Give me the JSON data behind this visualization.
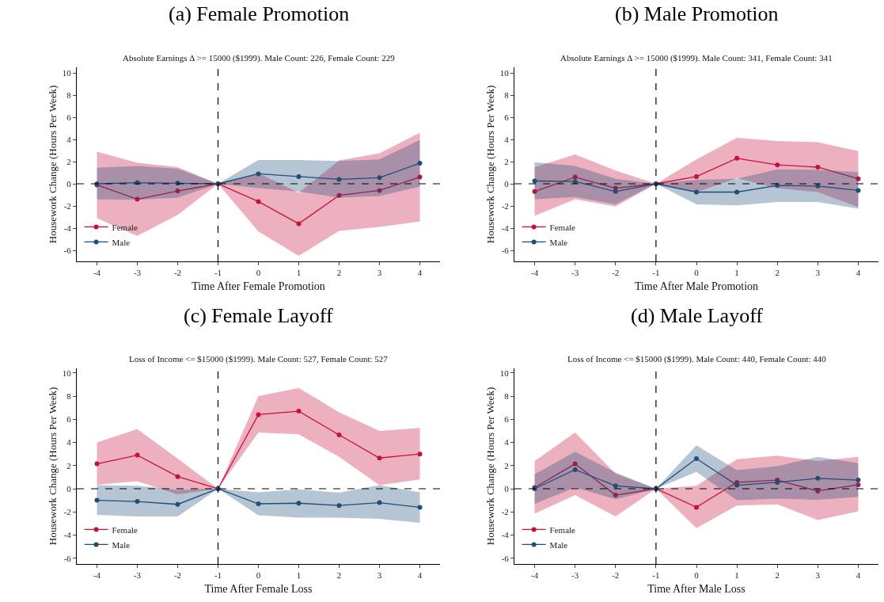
{
  "chart_data": [
    {
      "type": "line",
      "title": "(a) Female Promotion",
      "subtitle": "Absolute Earnings Δ >= 15000 ($1999). Male Count: 226, Female Count: 229",
      "xlabel": "Time After Female Promotion",
      "ylabel": "Housework Change (Hours Per Week)",
      "x": [
        -4,
        -3,
        -2,
        -1,
        0,
        1,
        2,
        3,
        4
      ],
      "xlim": [
        -4.5,
        4.5
      ],
      "xticks": [
        -4,
        -3,
        -2,
        -1,
        0,
        1,
        2,
        3,
        4
      ],
      "ylim": [
        -7,
        10.5
      ],
      "yticks": [
        -6,
        -4,
        -2,
        0,
        2,
        4,
        6,
        8,
        10
      ],
      "legend": "bottom left",
      "marker": "circle",
      "line_style": "solid",
      "ref_lines": [
        {
          "axis": "x",
          "value": -1,
          "color": "#000000",
          "line_style": "dashed"
        },
        {
          "axis": "y",
          "value": 0,
          "color": "#000000",
          "line_style": "dashed"
        }
      ],
      "series": [
        {
          "name": "Female",
          "color": "#c8103c",
          "values": [
            -0.1,
            -1.4,
            -0.65,
            0,
            -1.6,
            -3.6,
            -1.05,
            -0.6,
            0.6
          ],
          "lower": [
            -3.1,
            -4.7,
            -2.8,
            0,
            -4.3,
            -6.5,
            -4.25,
            -3.9,
            -3.4
          ],
          "upper": [
            2.9,
            1.9,
            1.5,
            0,
            0.95,
            -0.8,
            2.1,
            2.75,
            4.6
          ]
        },
        {
          "name": "Male",
          "color": "#1f4e79",
          "values": [
            0,
            0.1,
            0.05,
            0,
            0.9,
            0.65,
            0.4,
            0.55,
            1.85
          ],
          "lower": [
            -1.4,
            -1.45,
            -1.25,
            0,
            -0.4,
            -0.7,
            -1.25,
            -1.1,
            -0.25
          ],
          "upper": [
            1.45,
            1.6,
            1.35,
            0,
            2.15,
            2.15,
            2.05,
            2.2,
            3.95
          ]
        }
      ]
    },
    {
      "type": "line",
      "title": "(b) Male Promotion",
      "subtitle": "Absolute Earnings Δ >= 15000 ($1999). Male Count: 341, Female Count: 341",
      "xlabel": "Time After Male Promotion",
      "ylabel": "Housework Change (Hours Per Week)",
      "x": [
        -4,
        -3,
        -2,
        -1,
        0,
        1,
        2,
        3,
        4
      ],
      "xlim": [
        -4.5,
        4.5
      ],
      "xticks": [
        -4,
        -3,
        -2,
        -1,
        0,
        1,
        2,
        3,
        4
      ],
      "ylim": [
        -7,
        10.5
      ],
      "yticks": [
        -6,
        -4,
        -2,
        0,
        2,
        4,
        6,
        8,
        10
      ],
      "legend": "bottom left",
      "marker": "circle",
      "line_style": "solid",
      "ref_lines": [
        {
          "axis": "x",
          "value": -1,
          "color": "#000000",
          "line_style": "dashed"
        },
        {
          "axis": "y",
          "value": 0,
          "color": "#000000",
          "line_style": "dashed"
        }
      ],
      "series": [
        {
          "name": "Female",
          "color": "#c8103c",
          "values": [
            -0.7,
            0.6,
            -0.4,
            0,
            0.65,
            2.3,
            1.7,
            1.5,
            0.45
          ],
          "lower": [
            -2.9,
            -1.4,
            -2.05,
            0,
            -0.75,
            0.5,
            -0.4,
            -0.75,
            -2.1
          ],
          "upper": [
            1.5,
            2.65,
            1.2,
            0,
            2.2,
            4.15,
            3.85,
            3.75,
            2.95
          ]
        },
        {
          "name": "Male",
          "color": "#1f4e79",
          "values": [
            0.25,
            0.2,
            -0.7,
            0,
            -0.75,
            -0.75,
            -0.15,
            -0.2,
            -0.6
          ],
          "lower": [
            -1.4,
            -1.2,
            -1.85,
            0,
            -1.85,
            -1.95,
            -1.65,
            -1.65,
            -2.25
          ],
          "upper": [
            1.95,
            1.6,
            0.45,
            0,
            0.35,
            0.45,
            1.3,
            1.25,
            1.05
          ]
        }
      ]
    },
    {
      "type": "line",
      "title": "(c) Female Layoff",
      "subtitle": "Loss of Income <= $15000 ($1999). Male Count: 527, Female Count: 527",
      "xlabel": "Time After Female Loss",
      "ylabel": "Housework Change (Hours Per Week)",
      "x": [
        -4,
        -3,
        -2,
        -1,
        0,
        1,
        2,
        3,
        4
      ],
      "xlim": [
        -4.5,
        4.5
      ],
      "xticks": [
        -4,
        -3,
        -2,
        -1,
        0,
        1,
        2,
        3,
        4
      ],
      "ylim": [
        -6.5,
        10.4
      ],
      "yticks": [
        -6,
        -4,
        -2,
        0,
        2,
        4,
        6,
        8,
        10
      ],
      "legend": "bottom left",
      "marker": "circle",
      "line_style": "solid",
      "ref_lines": [
        {
          "axis": "x",
          "value": -1,
          "color": "#000000",
          "line_style": "dashed"
        },
        {
          "axis": "y",
          "value": 0,
          "color": "#000000",
          "line_style": "dashed"
        }
      ],
      "series": [
        {
          "name": "Female",
          "color": "#c8103c",
          "values": [
            2.15,
            2.9,
            1.05,
            0,
            6.4,
            6.7,
            4.65,
            2.65,
            3.0
          ],
          "lower": [
            0.35,
            0.65,
            -0.5,
            0,
            4.85,
            4.7,
            2.75,
            0.3,
            0.8
          ],
          "upper": [
            4.0,
            5.15,
            2.6,
            0,
            8.0,
            8.7,
            6.6,
            5.0,
            5.25
          ]
        },
        {
          "name": "Male",
          "color": "#1f4e79",
          "values": [
            -1.0,
            -1.1,
            -1.35,
            0,
            -1.3,
            -1.25,
            -1.45,
            -1.2,
            -1.6
          ],
          "lower": [
            -2.25,
            -2.4,
            -2.4,
            0,
            -2.3,
            -2.5,
            -2.5,
            -2.6,
            -2.95
          ],
          "upper": [
            0.3,
            0.25,
            -0.1,
            0,
            -0.3,
            -0.05,
            -0.35,
            0.3,
            -0.3
          ]
        }
      ]
    },
    {
      "type": "line",
      "title": "(d) Male Layoff",
      "subtitle": "Loss of Income <= $15000 ($1999). Male Count: 440, Female Count: 440",
      "xlabel": "Time After Male Loss",
      "ylabel": "Housework Change (Hours Per Week)",
      "x": [
        -4,
        -3,
        -2,
        -1,
        0,
        1,
        2,
        3,
        4
      ],
      "xlim": [
        -4.5,
        4.5
      ],
      "xticks": [
        -4,
        -3,
        -2,
        -1,
        0,
        1,
        2,
        3,
        4
      ],
      "ylim": [
        -6.5,
        10.4
      ],
      "yticks": [
        -6,
        -4,
        -2,
        0,
        2,
        4,
        6,
        8,
        10
      ],
      "legend": "bottom left",
      "marker": "circle",
      "line_style": "solid",
      "ref_lines": [
        {
          "axis": "x",
          "value": -1,
          "color": "#000000",
          "line_style": "dashed"
        },
        {
          "axis": "y",
          "value": 0,
          "color": "#000000",
          "line_style": "dashed"
        }
      ],
      "series": [
        {
          "name": "Female",
          "color": "#c8103c",
          "values": [
            0.1,
            2.15,
            -0.55,
            0,
            -1.6,
            0.55,
            0.75,
            -0.2,
            0.35
          ],
          "lower": [
            -2.15,
            -0.55,
            -2.4,
            0,
            -3.4,
            -1.45,
            -1.35,
            -2.7,
            -1.95
          ],
          "upper": [
            2.4,
            4.85,
            1.3,
            0,
            0.25,
            2.55,
            2.85,
            2.4,
            2.75
          ]
        },
        {
          "name": "Male",
          "color": "#1f4e79",
          "values": [
            0,
            1.65,
            0.25,
            0,
            2.6,
            0.3,
            0.55,
            0.9,
            0.75
          ],
          "lower": [
            -1.3,
            0.1,
            -0.9,
            0,
            1.45,
            -1.0,
            -0.85,
            -0.95,
            -0.7
          ],
          "upper": [
            1.25,
            3.2,
            1.4,
            0,
            3.75,
            1.6,
            1.95,
            2.75,
            2.2
          ]
        }
      ]
    }
  ]
}
